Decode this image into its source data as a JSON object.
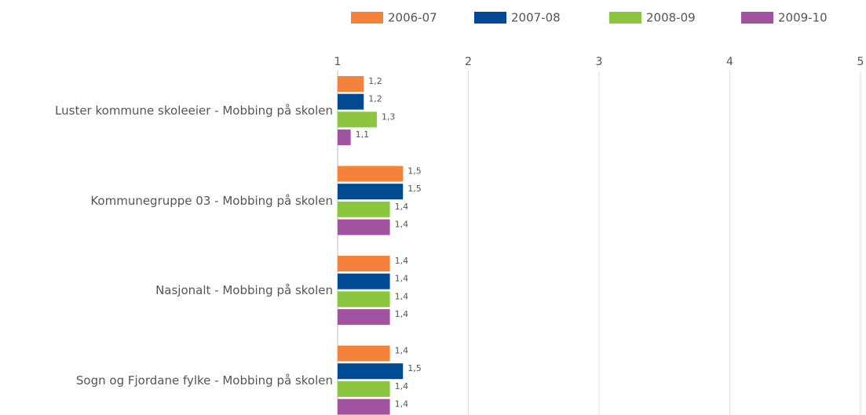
{
  "chart_data": {
    "type": "hbar",
    "categories": [
      "Luster kommune skoleeier - Mobbing på skolen",
      "Kommunegruppe 03 - Mobbing på skolen",
      "Nasjonalt - Mobbing på skolen",
      "Sogn og Fjordane fylke - Mobbing på skolen"
    ],
    "series": [
      {
        "name": "2006-07",
        "color": "#f5823a",
        "values": [
          1.2,
          1.5,
          1.4,
          1.4
        ],
        "value_labels": [
          "1,2",
          "1,5",
          "1,4",
          "1,4"
        ]
      },
      {
        "name": "2007-08",
        "color": "#004a93",
        "values": [
          1.2,
          1.5,
          1.4,
          1.5
        ],
        "value_labels": [
          "1,2",
          "1,5",
          "1,4",
          "1,5"
        ]
      },
      {
        "name": "2008-09",
        "color": "#8cc63e",
        "values": [
          1.3,
          1.4,
          1.4,
          1.4
        ],
        "value_labels": [
          "1,3",
          "1,4",
          "1,4",
          "1,4"
        ]
      },
      {
        "name": "2009-10",
        "color": "#a0519f",
        "values": [
          1.1,
          1.4,
          1.4,
          1.4
        ],
        "value_labels": [
          "1,1",
          "1,4",
          "1,4",
          "1,4"
        ]
      }
    ],
    "xlim": [
      1,
      5
    ],
    "xticks": [
      1,
      2,
      3,
      4,
      5
    ],
    "grid": true,
    "legend": "top-right"
  }
}
